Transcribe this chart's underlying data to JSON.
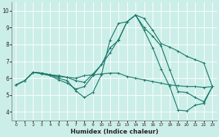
{
  "xlabel": "Humidex (Indice chaleur)",
  "bg_color": "#cceee8",
  "line_color": "#1a7a6a",
  "grid_color": "#ffffff",
  "xlim": [
    -0.5,
    23.5
  ],
  "ylim": [
    3.5,
    10.5
  ],
  "xticks": [
    0,
    1,
    2,
    3,
    4,
    5,
    6,
    7,
    8,
    9,
    10,
    11,
    12,
    13,
    14,
    15,
    16,
    17,
    18,
    19,
    20,
    21,
    22,
    23
  ],
  "yticks": [
    4,
    5,
    6,
    7,
    8,
    9,
    10
  ],
  "lines": [
    [
      0,
      5.6,
      1,
      5.85,
      2,
      6.35,
      3,
      6.3,
      4,
      6.2,
      5,
      6.1,
      6,
      6.05,
      7,
      5.85,
      8,
      5.75,
      9,
      6.25,
      10,
      6.8,
      11,
      7.8,
      12,
      8.25,
      13,
      9.35,
      14,
      9.75,
      15,
      9.55,
      16,
      8.85,
      17,
      8.05,
      18,
      7.85,
      19,
      7.6,
      20,
      7.3,
      21,
      7.1,
      22,
      6.9,
      23,
      5.5
    ],
    [
      0,
      5.6,
      1,
      5.85,
      2,
      6.35,
      3,
      6.3,
      4,
      6.2,
      5,
      6.0,
      6,
      5.85,
      7,
      5.25,
      8,
      4.85,
      9,
      5.15,
      10,
      6.2,
      11,
      8.25,
      12,
      9.25,
      13,
      9.35,
      14,
      9.75,
      15,
      8.85,
      16,
      7.8,
      17,
      6.55,
      18,
      5.5,
      19,
      4.1,
      20,
      4.05,
      21,
      4.4,
      22,
      4.5,
      23,
      5.5
    ],
    [
      0,
      5.6,
      1,
      5.85,
      2,
      6.35,
      3,
      6.25,
      4,
      6.15,
      5,
      5.9,
      6,
      5.7,
      7,
      5.35,
      8,
      5.5,
      9,
      6.15,
      10,
      6.8,
      11,
      7.5,
      12,
      8.3,
      13,
      9.35,
      14,
      9.75,
      15,
      9.0,
      16,
      8.5,
      17,
      7.9,
      18,
      6.5,
      19,
      5.2,
      20,
      5.15,
      21,
      4.85,
      22,
      4.6,
      23,
      5.5
    ],
    [
      0,
      5.6,
      1,
      5.85,
      2,
      6.35,
      3,
      6.3,
      4,
      6.2,
      5,
      6.15,
      6,
      6.05,
      7,
      6.0,
      8,
      6.15,
      9,
      6.2,
      10,
      6.25,
      11,
      6.3,
      12,
      6.3,
      13,
      6.1,
      14,
      6.0,
      15,
      5.9,
      16,
      5.8,
      17,
      5.7,
      18,
      5.6,
      19,
      5.55,
      20,
      5.5,
      21,
      5.5,
      22,
      5.45,
      23,
      5.5
    ]
  ]
}
